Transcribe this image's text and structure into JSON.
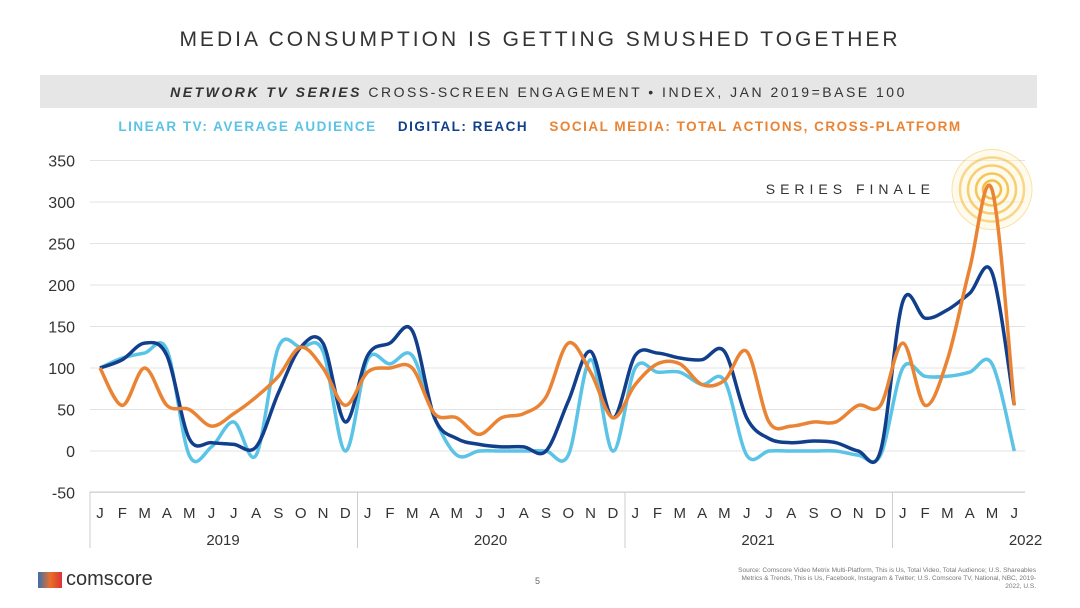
{
  "chart_data": {
    "type": "line",
    "title": "MEDIA CONSUMPTION IS GETTING SMUSHED TOGETHER",
    "subtitle_em": "NETWORK TV SERIES",
    "subtitle": " CROSS-SCREEN ENGAGEMENT • INDEX, JAN 2019=BASE 100",
    "months": [
      "J",
      "F",
      "M",
      "A",
      "M",
      "J",
      "J",
      "A",
      "S",
      "O",
      "N",
      "D",
      "J",
      "F",
      "M",
      "A",
      "M",
      "J",
      "J",
      "A",
      "S",
      "O",
      "N",
      "D",
      "J",
      "F",
      "M",
      "A",
      "M",
      "J",
      "J",
      "A",
      "S",
      "O",
      "N",
      "D",
      "J",
      "F",
      "M",
      "A",
      "M",
      "J"
    ],
    "years": [
      "2019",
      "2020",
      "2021",
      "2022"
    ],
    "ylim": [
      -50,
      350
    ],
    "yticks": [
      "350",
      "300",
      "250",
      "200",
      "150",
      "100",
      "50",
      "0",
      "-50"
    ],
    "annotation": "SERIES FINALE",
    "series": [
      {
        "name": "LINEAR TV: AVERAGE AUDIENCE",
        "color": "#5bc3e6",
        "values": [
          100,
          112,
          118,
          122,
          -5,
          5,
          35,
          -5,
          125,
          125,
          120,
          0,
          110,
          105,
          115,
          40,
          -5,
          0,
          0,
          0,
          0,
          -5,
          110,
          0,
          100,
          95,
          95,
          80,
          85,
          -5,
          0,
          0,
          0,
          0,
          -5,
          -5,
          100,
          90,
          90,
          95,
          105,
          0
        ]
      },
      {
        "name": "DIGITAL: REACH",
        "color": "#123f8c",
        "values": [
          100,
          110,
          130,
          115,
          15,
          10,
          8,
          5,
          70,
          125,
          130,
          35,
          115,
          130,
          145,
          40,
          15,
          8,
          5,
          5,
          0,
          60,
          120,
          40,
          115,
          118,
          112,
          110,
          120,
          40,
          15,
          10,
          12,
          10,
          0,
          0,
          180,
          160,
          170,
          190,
          215,
          55
        ]
      },
      {
        "name": "SOCIAL MEDIA: TOTAL ACTIONS, CROSS-PLATFORM",
        "color": "#ea8434",
        "values": [
          100,
          55,
          100,
          55,
          50,
          30,
          45,
          65,
          90,
          125,
          100,
          55,
          95,
          100,
          100,
          45,
          40,
          20,
          40,
          45,
          65,
          130,
          95,
          40,
          80,
          105,
          105,
          80,
          85,
          120,
          35,
          30,
          35,
          35,
          55,
          55,
          130,
          55,
          110,
          220,
          315,
          55
        ]
      }
    ]
  },
  "footer": {
    "brand": "comscore",
    "page": "5",
    "source": "Source: Comscore Video Metrix Multi-Platform, This is Us, Total Video, Total Audience; U.S. Shareables Metrics & Trends, This is Us, Facebook, Instagram & Twitter; U.S. Comscore TV, National, NBC, 2019-2022, U.S."
  }
}
